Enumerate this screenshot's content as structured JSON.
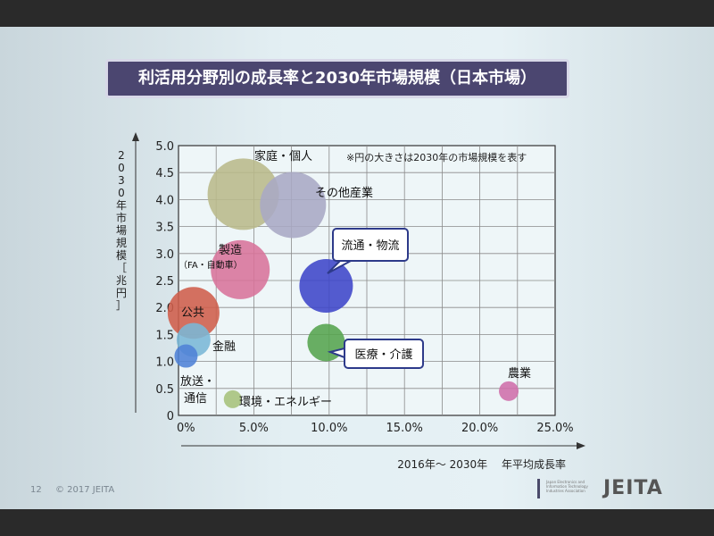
{
  "slide": {
    "title": "利活用分野別の成長率と2030年市場規模（日本市場）",
    "page_number": "12",
    "copyright": "© 2017 JEITA",
    "logo_text": "JEITA",
    "logo_small_text": "Japan Electronics and Information Technology Industries Association"
  },
  "chart_data": {
    "type": "scatter",
    "note": "※円の大きさは2030年の市場規模を表す",
    "xlabel": "2016年～ 2030年　 年平均成長率",
    "ylabel": "2030年市場規模［兆円］",
    "xlim": [
      0,
      25
    ],
    "ylim": [
      0,
      5
    ],
    "x_ticks": [
      "0%",
      "5.0%",
      "10.0%",
      "15.0%",
      "20.0%",
      "25.0%"
    ],
    "y_ticks": [
      "0",
      "0.5",
      "1.0",
      "1.5",
      "2.0",
      "2.5",
      "3.0",
      "3.5",
      "4.0",
      "4.5",
      "5.0"
    ],
    "grid": true,
    "points": [
      {
        "label": "家庭・個人",
        "x": 4.3,
        "y": 4.1,
        "color": "#b9b98a"
      },
      {
        "label": "その他産業",
        "x": 7.6,
        "y": 3.9,
        "color": "#a8a8c4"
      },
      {
        "label": "製造",
        "sublabel": "（FA・自動車）",
        "x": 4.1,
        "y": 2.7,
        "color": "#d8739a"
      },
      {
        "label": "流通・物流",
        "x": 9.8,
        "y": 2.4,
        "color": "#3e45c8"
      },
      {
        "label": "公共",
        "x": 1.0,
        "y": 1.9,
        "color": "#cf5d4a"
      },
      {
        "label": "金融",
        "x": 1.0,
        "y": 1.4,
        "color": "#7ab7d6"
      },
      {
        "label": "医療・介護",
        "x": 9.8,
        "y": 1.35,
        "color": "#55a44d"
      },
      {
        "label": "放送・通信",
        "x": 0.5,
        "y": 1.1,
        "color": "#4f82d6"
      },
      {
        "label": "環境・エネルギー",
        "x": 3.6,
        "y": 0.3,
        "color": "#a6c17a"
      },
      {
        "label": "農業",
        "x": 24.7,
        "y": 0.45,
        "color": "#cf6eaa"
      }
    ]
  }
}
